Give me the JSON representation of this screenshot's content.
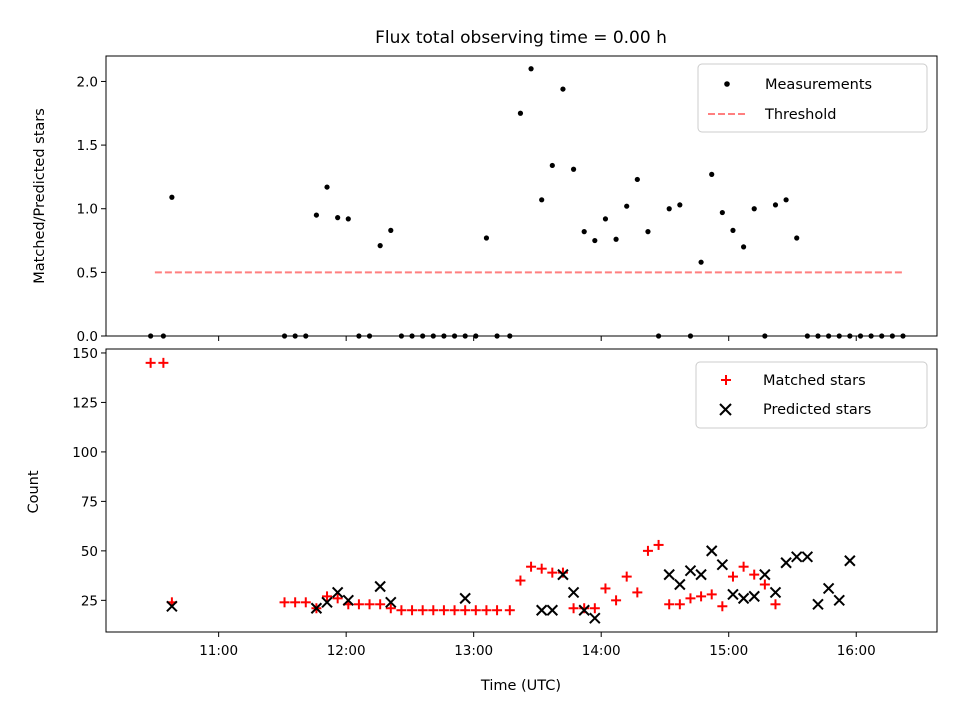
{
  "chart_data": [
    {
      "type": "scatter",
      "title": "Flux total observing time = 0.00 h",
      "xlabel": "",
      "ylabel": "Matched/Predicted stars",
      "xlim": [
        "10:07",
        "16:38"
      ],
      "ylim": [
        0,
        2.2
      ],
      "x_ticks": [],
      "y_ticks": [
        "0.0",
        "0.5",
        "1.0",
        "1.5",
        "2.0"
      ],
      "y_tick_values": [
        0.0,
        0.5,
        1.0,
        1.5,
        2.0
      ],
      "grid": false,
      "legend_position": "top-right",
      "legend": [
        "Measurements",
        "Threshold"
      ],
      "series": [
        {
          "name": "Measurements",
          "marker": "dot",
          "color": "#000000",
          "x": [
            "10:28",
            "10:34",
            "10:38",
            "11:31",
            "11:36",
            "11:41",
            "11:46",
            "11:51",
            "11:56",
            "12:01",
            "12:06",
            "12:11",
            "12:16",
            "12:21",
            "12:26",
            "12:31",
            "12:36",
            "12:41",
            "12:46",
            "12:51",
            "12:56",
            "13:01",
            "13:06",
            "13:11",
            "13:17",
            "13:22",
            "13:27",
            "13:32",
            "13:37",
            "13:42",
            "13:47",
            "13:52",
            "13:57",
            "14:02",
            "14:07",
            "14:12",
            "14:17",
            "14:22",
            "14:27",
            "14:32",
            "14:37",
            "14:42",
            "14:47",
            "14:52",
            "14:57",
            "15:02",
            "15:07",
            "15:12",
            "15:17",
            "15:22",
            "15:27",
            "15:32",
            "15:37",
            "15:42",
            "15:47",
            "15:52",
            "15:57",
            "16:02",
            "16:07",
            "16:12",
            "16:17",
            "16:22"
          ],
          "values": [
            0,
            0,
            1.09,
            0,
            0,
            0,
            0.95,
            1.17,
            0.93,
            0.92,
            0,
            0,
            0.71,
            0.83,
            0,
            0,
            0,
            0,
            0,
            0,
            0,
            0,
            0.77,
            0,
            0,
            1.75,
            2.1,
            1.07,
            1.34,
            1.94,
            1.31,
            0.82,
            0.75,
            0.92,
            0.76,
            1.02,
            1.23,
            0.82,
            0,
            1.0,
            1.03,
            0,
            0.58,
            1.27,
            0.97,
            0.83,
            0.7,
            1.0,
            0,
            1.03,
            1.07,
            0.77,
            0,
            0,
            0,
            0,
            0,
            0,
            0,
            0,
            0,
            0
          ]
        },
        {
          "name": "Threshold",
          "style": "dashed",
          "color": "#ff7f7f",
          "x": [
            "10:30",
            "16:22"
          ],
          "values": [
            0.5,
            0.5
          ]
        }
      ]
    },
    {
      "type": "scatter",
      "title": "",
      "xlabel": "Time (UTC)",
      "ylabel": "Count",
      "xlim": [
        "10:07",
        "16:38"
      ],
      "ylim": [
        9,
        152
      ],
      "x_ticks": [
        "11:00",
        "12:00",
        "13:00",
        "14:00",
        "15:00",
        "16:00"
      ],
      "y_ticks": [
        "25",
        "50",
        "75",
        "100",
        "125",
        "150"
      ],
      "y_tick_values": [
        25,
        50,
        75,
        100,
        125,
        150
      ],
      "grid": false,
      "legend_position": "top-right",
      "legend": [
        "Matched stars",
        "Predicted stars"
      ],
      "series": [
        {
          "name": "Matched stars",
          "marker": "plus",
          "color": "#ff0000",
          "x": [
            "10:28",
            "10:34",
            "10:38",
            "11:31",
            "11:36",
            "11:41",
            "11:46",
            "11:51",
            "11:56",
            "12:01",
            "12:06",
            "12:11",
            "12:16",
            "12:21",
            "12:26",
            "12:31",
            "12:36",
            "12:41",
            "12:46",
            "12:51",
            "12:56",
            "13:01",
            "13:06",
            "13:11",
            "13:17",
            "13:22",
            "13:27",
            "13:32",
            "13:37",
            "13:42",
            "13:47",
            "13:52",
            "13:57",
            "14:02",
            "14:07",
            "14:12",
            "14:17",
            "14:22",
            "14:27",
            "14:32",
            "14:37",
            "14:42",
            "14:47",
            "14:52",
            "14:57",
            "15:02",
            "15:07",
            "15:12",
            "15:17",
            "15:22"
          ],
          "values": [
            145,
            145,
            24,
            24,
            24,
            24,
            21,
            27,
            26,
            23,
            23,
            23,
            23,
            21,
            20,
            20,
            20,
            20,
            20,
            20,
            20,
            20,
            20,
            20,
            20,
            35,
            42,
            41,
            39,
            39,
            21,
            21,
            21,
            31,
            25,
            37,
            29,
            50,
            53,
            23,
            23,
            26,
            27,
            28,
            22,
            37,
            42,
            38,
            33,
            23
          ]
        },
        {
          "name": "Predicted stars",
          "marker": "x",
          "color": "#000000",
          "x": [
            "10:38",
            "11:46",
            "11:51",
            "11:56",
            "12:01",
            "12:16",
            "12:21",
            "12:56",
            "13:32",
            "13:37",
            "13:42",
            "13:47",
            "13:52",
            "13:57",
            "14:32",
            "14:37",
            "14:42",
            "14:47",
            "14:52",
            "14:57",
            "15:02",
            "15:07",
            "15:12",
            "15:17",
            "15:22",
            "15:27",
            "15:32",
            "15:37",
            "15:42",
            "15:47",
            "15:52",
            "15:57"
          ],
          "values": [
            22,
            21,
            24,
            29,
            25,
            32,
            24,
            26,
            20,
            20,
            38,
            29,
            20,
            16,
            38,
            33,
            40,
            38,
            50,
            43,
            28,
            26,
            27,
            38,
            29,
            44,
            47,
            47,
            23,
            31,
            25,
            45
          ]
        }
      ]
    }
  ]
}
